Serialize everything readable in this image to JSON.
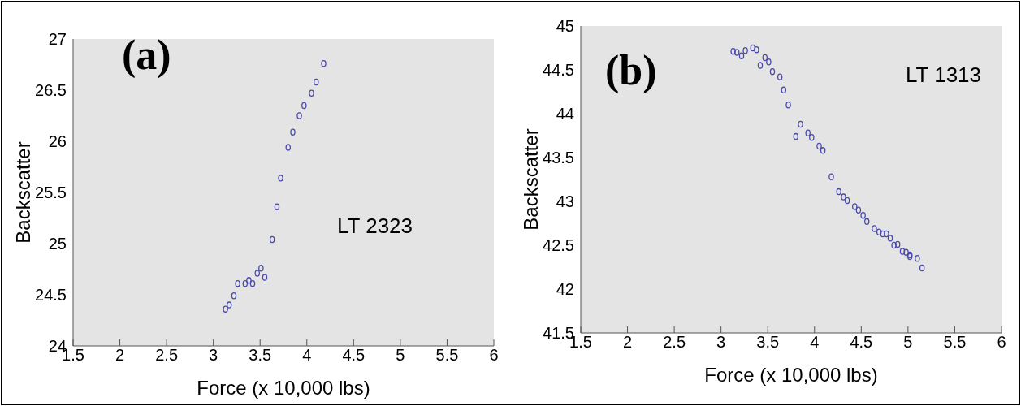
{
  "chart_data": [
    {
      "type": "scatter",
      "xlabel": "Force (x 10,000 lbs)",
      "ylabel": "Backscatter",
      "annotations": [
        "(a)",
        "LT 2323"
      ],
      "marker": "circle",
      "grid": false,
      "xlim": [
        1.5,
        6
      ],
      "xticks": [
        1.5,
        2,
        2.5,
        3,
        3.5,
        4,
        4.5,
        5,
        5.5,
        6
      ],
      "ylim": [
        24,
        27
      ],
      "yticks": [
        24,
        24.5,
        25,
        25.5,
        26,
        26.5,
        27
      ],
      "series": [
        {
          "color": "#4a4aaa",
          "x": [
            3.13,
            3.17,
            3.22,
            3.26,
            3.34,
            3.38,
            3.42,
            3.47,
            3.51,
            3.55,
            3.63,
            3.68,
            3.72,
            3.8,
            3.85,
            3.92,
            3.97,
            4.05,
            4.1,
            4.18
          ],
          "values": [
            24.36,
            24.4,
            24.49,
            24.61,
            24.61,
            24.64,
            24.61,
            24.71,
            24.76,
            24.67,
            25.04,
            25.36,
            25.64,
            25.94,
            26.09,
            26.25,
            26.35,
            26.47,
            26.58,
            26.76
          ]
        }
      ]
    },
    {
      "type": "scatter",
      "xlabel": "Force (x 10,000 lbs)",
      "ylabel": "Backscatter",
      "annotations": [
        "(b)",
        "LT 1313"
      ],
      "marker": "circle",
      "grid": false,
      "xlim": [
        1.5,
        6
      ],
      "xticks": [
        1.5,
        2,
        2.5,
        3,
        3.5,
        4,
        4.5,
        5,
        5.5,
        6
      ],
      "ylim": [
        41.5,
        45
      ],
      "yticks": [
        41.5,
        42,
        42.5,
        43,
        43.5,
        44,
        44.5,
        45
      ],
      "series": [
        {
          "color": "#4a4aaa",
          "x": [
            3.13,
            3.17,
            3.22,
            3.26,
            3.34,
            3.38,
            3.42,
            3.47,
            3.51,
            3.55,
            3.63,
            3.67,
            3.72,
            3.8,
            3.85,
            3.93,
            3.97,
            4.05,
            4.09,
            4.18,
            4.26,
            4.31,
            4.35,
            4.43,
            4.47,
            4.52,
            4.56,
            4.64,
            4.69,
            4.73,
            4.77,
            4.81,
            4.85,
            4.89,
            4.94,
            4.98,
            5.02,
            5.02,
            5.1,
            5.15
          ],
          "values": [
            44.71,
            44.7,
            44.66,
            44.72,
            44.75,
            44.73,
            44.55,
            44.64,
            44.59,
            44.48,
            44.42,
            44.27,
            44.1,
            43.74,
            43.88,
            43.78,
            43.73,
            43.63,
            43.58,
            43.28,
            43.11,
            43.05,
            43.01,
            42.94,
            42.9,
            42.84,
            42.77,
            42.69,
            42.65,
            42.63,
            42.63,
            42.58,
            42.5,
            42.51,
            42.43,
            42.42,
            42.39,
            42.37,
            42.35,
            42.24
          ]
        }
      ]
    }
  ]
}
